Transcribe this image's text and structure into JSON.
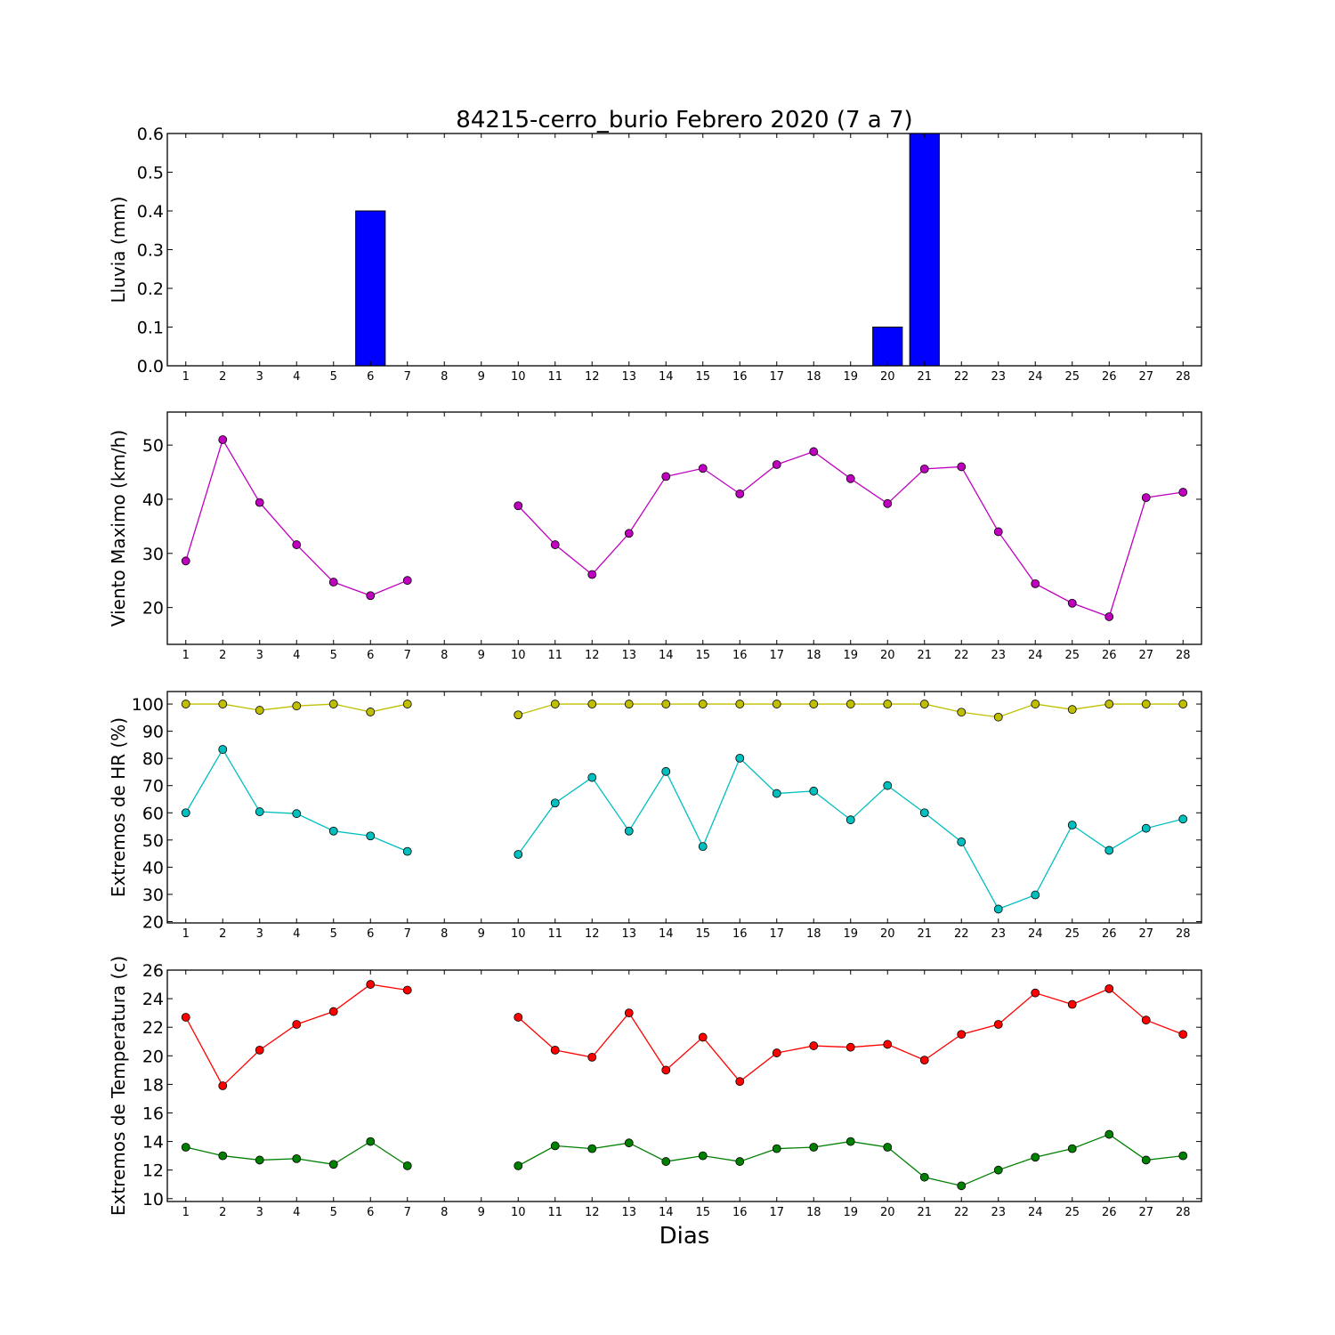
{
  "figure": {
    "title": "84215-cerro_burio Febrero 2020  (7 a 7)",
    "xlabel": "Dias"
  },
  "chart_data": [
    {
      "type": "bar",
      "ylabel": "Lluvia (mm)",
      "categories": [
        "1",
        "2",
        "3",
        "4",
        "5",
        "6",
        "7",
        "8",
        "9",
        "10",
        "11",
        "12",
        "13",
        "14",
        "15",
        "16",
        "17",
        "18",
        "19",
        "20",
        "21",
        "22",
        "23",
        "24",
        "25",
        "26",
        "27",
        "28"
      ],
      "series": [
        {
          "color": "#0000ff",
          "values": [
            0,
            0,
            0,
            0,
            0,
            0.4,
            0,
            0,
            0,
            0,
            0,
            0,
            0,
            0,
            0,
            0,
            0,
            0,
            0,
            0.1,
            0.6,
            0,
            0,
            0,
            0,
            0,
            0,
            0
          ]
        }
      ],
      "ylim": [
        0,
        0.6
      ],
      "yticks": [
        0.0,
        0.1,
        0.2,
        0.3,
        0.4,
        0.5,
        0.6
      ],
      "ytick_decimals": 1,
      "xlim": [
        0.5,
        28.5
      ],
      "grid": false
    },
    {
      "type": "line",
      "ylabel": "Viento Maximo (km/h)",
      "x": [
        1,
        2,
        3,
        4,
        5,
        6,
        7,
        8,
        9,
        10,
        11,
        12,
        13,
        14,
        15,
        16,
        17,
        18,
        19,
        20,
        21,
        22,
        23,
        24,
        25,
        26,
        27,
        28
      ],
      "series": [
        {
          "color": "#bf00bf",
          "values": [
            28.6,
            51.0,
            39.4,
            31.6,
            24.7,
            22.2,
            25.0,
            null,
            null,
            38.8,
            31.6,
            26.1,
            33.7,
            44.2,
            45.7,
            41.0,
            46.4,
            48.8,
            43.8,
            39.2,
            45.6,
            46.0,
            34.0,
            24.4,
            20.8,
            18.3,
            40.3,
            41.3
          ]
        }
      ],
      "ylim": [
        13.2,
        56.1
      ],
      "yticks": [
        20,
        30,
        40,
        50
      ],
      "ytick_decimals": 0,
      "xlim": [
        0.5,
        28.5
      ],
      "grid": false
    },
    {
      "type": "line",
      "ylabel": "Extremos de HR (%)",
      "x": [
        1,
        2,
        3,
        4,
        5,
        6,
        7,
        8,
        9,
        10,
        11,
        12,
        13,
        14,
        15,
        16,
        17,
        18,
        19,
        20,
        21,
        22,
        23,
        24,
        25,
        26,
        27,
        28
      ],
      "series": [
        {
          "color": "#bfbf00",
          "values": [
            100,
            100,
            97.7,
            99.3,
            100,
            97.1,
            100,
            null,
            null,
            96.0,
            100,
            100,
            100,
            100,
            100,
            100,
            100,
            100,
            100,
            100,
            100,
            97.0,
            95.2,
            100,
            98.0,
            100,
            100,
            100
          ]
        },
        {
          "color": "#00bfbf",
          "values": [
            60,
            83.3,
            60.4,
            59.7,
            53.3,
            51.5,
            45.8,
            null,
            null,
            44.7,
            63.6,
            73.0,
            53.3,
            75.2,
            47.6,
            80.1,
            67.1,
            68.0,
            57.4,
            70.0,
            60.0,
            49.3,
            24.6,
            29.8,
            55.5,
            46.2,
            54.3,
            57.7
          ]
        }
      ],
      "ylim": [
        19.5,
        104.6
      ],
      "yticks": [
        20,
        30,
        40,
        50,
        60,
        70,
        80,
        90,
        100
      ],
      "ytick_decimals": 0,
      "xlim": [
        0.5,
        28.5
      ],
      "grid": false
    },
    {
      "type": "line",
      "ylabel": "Extremos de Temperatura (c)",
      "x": [
        1,
        2,
        3,
        4,
        5,
        6,
        7,
        8,
        9,
        10,
        11,
        12,
        13,
        14,
        15,
        16,
        17,
        18,
        19,
        20,
        21,
        22,
        23,
        24,
        25,
        26,
        27,
        28
      ],
      "series": [
        {
          "color": "#ff0000",
          "values": [
            22.7,
            17.9,
            20.4,
            22.2,
            23.1,
            25.0,
            24.6,
            null,
            null,
            22.7,
            20.4,
            19.9,
            23.0,
            19.0,
            21.3,
            18.2,
            20.2,
            20.7,
            20.6,
            20.8,
            19.7,
            21.5,
            22.2,
            24.4,
            23.6,
            24.7,
            22.5,
            21.5
          ]
        },
        {
          "color": "#008000",
          "values": [
            13.6,
            13.0,
            12.7,
            12.8,
            12.4,
            14.0,
            12.3,
            null,
            null,
            12.3,
            13.7,
            13.5,
            13.9,
            12.6,
            13.0,
            12.6,
            13.5,
            13.6,
            14.0,
            13.6,
            11.5,
            10.9,
            12.0,
            12.9,
            13.5,
            14.5,
            12.7,
            13.0
          ]
        }
      ],
      "ylim": [
        9.8,
        26.0
      ],
      "yticks": [
        10,
        12,
        14,
        16,
        18,
        20,
        22,
        24,
        26
      ],
      "ytick_decimals": 0,
      "xlim": [
        0.5,
        28.5
      ],
      "grid": false
    }
  ]
}
